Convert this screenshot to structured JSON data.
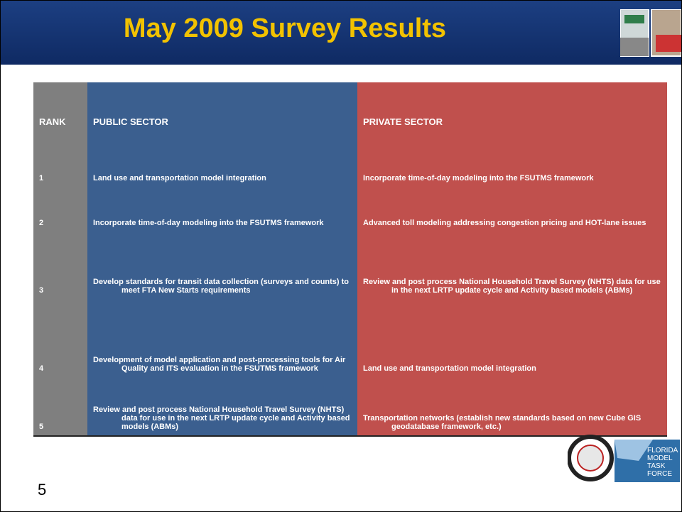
{
  "header": {
    "title": "May 2009 Survey Results"
  },
  "table": {
    "columns": [
      "RANK",
      "PUBLIC SECTOR",
      "PRIVATE SECTOR"
    ],
    "rows": [
      [
        "1",
        "Land use and transportation model integration",
        "Incorporate time-of-day modeling into the FSUTMS framework"
      ],
      [
        "2",
        "Incorporate time-of-day modeling into the FSUTMS framework",
        "Advanced toll modeling addressing congestion pricing and HOT-lane issues"
      ],
      [
        "3",
        "Develop standards for transit data collection (surveys and counts) to meet FTA New Starts requirements",
        "Review and post process National Household Travel Survey (NHTS) data for use in the next LRTP update cycle and Activity based models (ABMs)"
      ],
      [
        "4",
        "Development of model application and post-processing tools for Air Quality and ITS evaluation in the FSUTMS framework",
        "Land use and transportation model integration"
      ],
      [
        "5",
        "Review and post process National Household Travel Survey (NHTS) data for use in the next LRTP update cycle and Activity based models (ABMs)",
        "Transportation networks (establish new standards based on new Cube GIS geodatabase framework, etc.)"
      ]
    ]
  },
  "logo": {
    "lines": [
      "FLORIDA",
      "MODEL",
      "TASK",
      "FORCE"
    ]
  },
  "footer": {
    "page_number": "5"
  }
}
